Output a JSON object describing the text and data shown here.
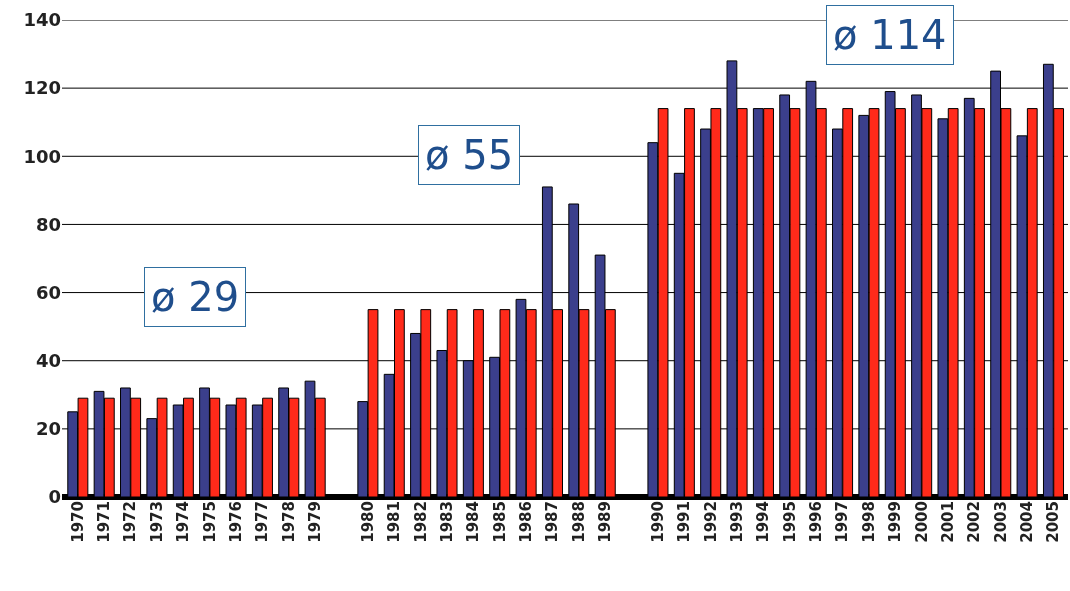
{
  "chart_data": {
    "type": "bar",
    "categories": [
      "1970",
      "1971",
      "1972",
      "1973",
      "1974",
      "1975",
      "1976",
      "1977",
      "1978",
      "1979",
      null,
      "1980",
      "1981",
      "1982",
      "1983",
      "1984",
      "1985",
      "1986",
      "1987",
      "1988",
      "1989",
      null,
      "1990",
      "1991",
      "1992",
      "1993",
      "1994",
      "1995",
      "1996",
      "1997",
      "1998",
      "1999",
      "2000",
      "2001",
      "2002",
      "2003",
      "2004",
      "2005"
    ],
    "series": [
      {
        "color": "#3b3f8c",
        "values": [
          25,
          31,
          32,
          23,
          27,
          32,
          27,
          27,
          32,
          34,
          null,
          28,
          36,
          48,
          43,
          40,
          41,
          58,
          91,
          86,
          71,
          null,
          104,
          95,
          108,
          128,
          114,
          118,
          122,
          108,
          112,
          119,
          118,
          111,
          117,
          125,
          106,
          127
        ]
      },
      {
        "color": "#ff2a1a",
        "values": [
          29,
          29,
          29,
          29,
          29,
          29,
          29,
          29,
          29,
          29,
          null,
          55,
          55,
          55,
          55,
          55,
          55,
          55,
          55,
          55,
          55,
          null,
          114,
          114,
          114,
          114,
          114,
          114,
          114,
          114,
          114,
          114,
          114,
          114,
          114,
          114,
          114,
          114
        ]
      }
    ],
    "annotations": [
      "ø 29",
      "ø 55",
      "ø 114"
    ],
    "ylim": [
      0,
      140
    ],
    "yticks": [
      0,
      20,
      40,
      60,
      80,
      100,
      120,
      140
    ],
    "grid": "y"
  }
}
